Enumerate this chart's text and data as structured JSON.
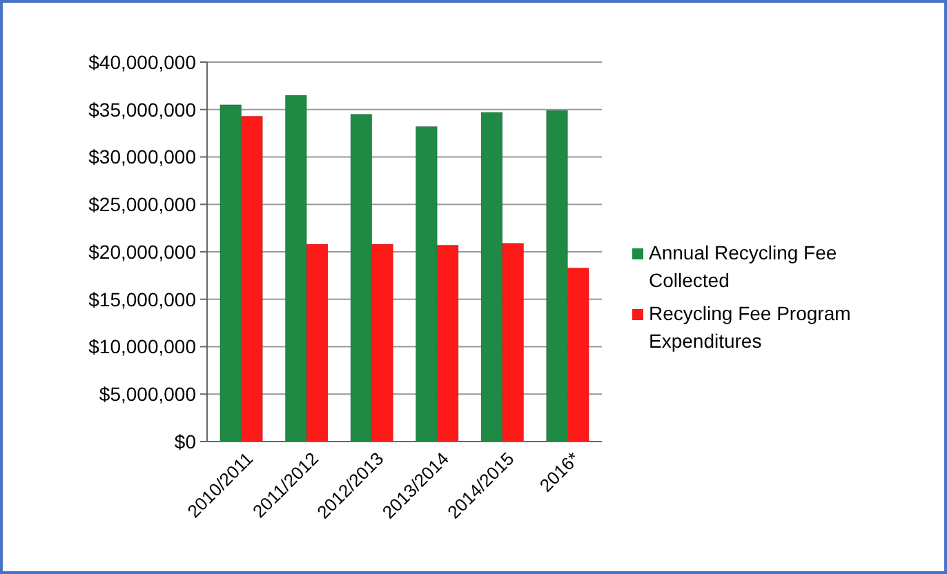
{
  "chart_data": {
    "type": "bar",
    "categories": [
      "2010/2011",
      "2011/2012",
      "2012/2013",
      "2013/2014",
      "2014/2015",
      "2016*"
    ],
    "series": [
      {
        "name": "Annual Recycling Fee Collected",
        "color": "#1e8a44",
        "values": [
          35500000,
          36500000,
          34500000,
          33200000,
          34700000,
          34900000
        ]
      },
      {
        "name": "Recycling Fee Program Expenditures",
        "color": "#ff1a1a",
        "values": [
          34300000,
          20800000,
          20800000,
          20700000,
          20900000,
          18300000
        ]
      }
    ],
    "ylim": [
      0,
      40000000
    ],
    "yticks": [
      {
        "value": 0,
        "label": "$0"
      },
      {
        "value": 5000000,
        "label": "$5,000,000"
      },
      {
        "value": 10000000,
        "label": "$10,000,000"
      },
      {
        "value": 15000000,
        "label": "$15,000,000"
      },
      {
        "value": 20000000,
        "label": "$20,000,000"
      },
      {
        "value": 25000000,
        "label": "$25,000,000"
      },
      {
        "value": 30000000,
        "label": "$30,000,000"
      },
      {
        "value": 35000000,
        "label": "$35,000,000"
      },
      {
        "value": 40000000,
        "label": "$40,000,000"
      }
    ],
    "grid": "y",
    "legend": "right"
  }
}
